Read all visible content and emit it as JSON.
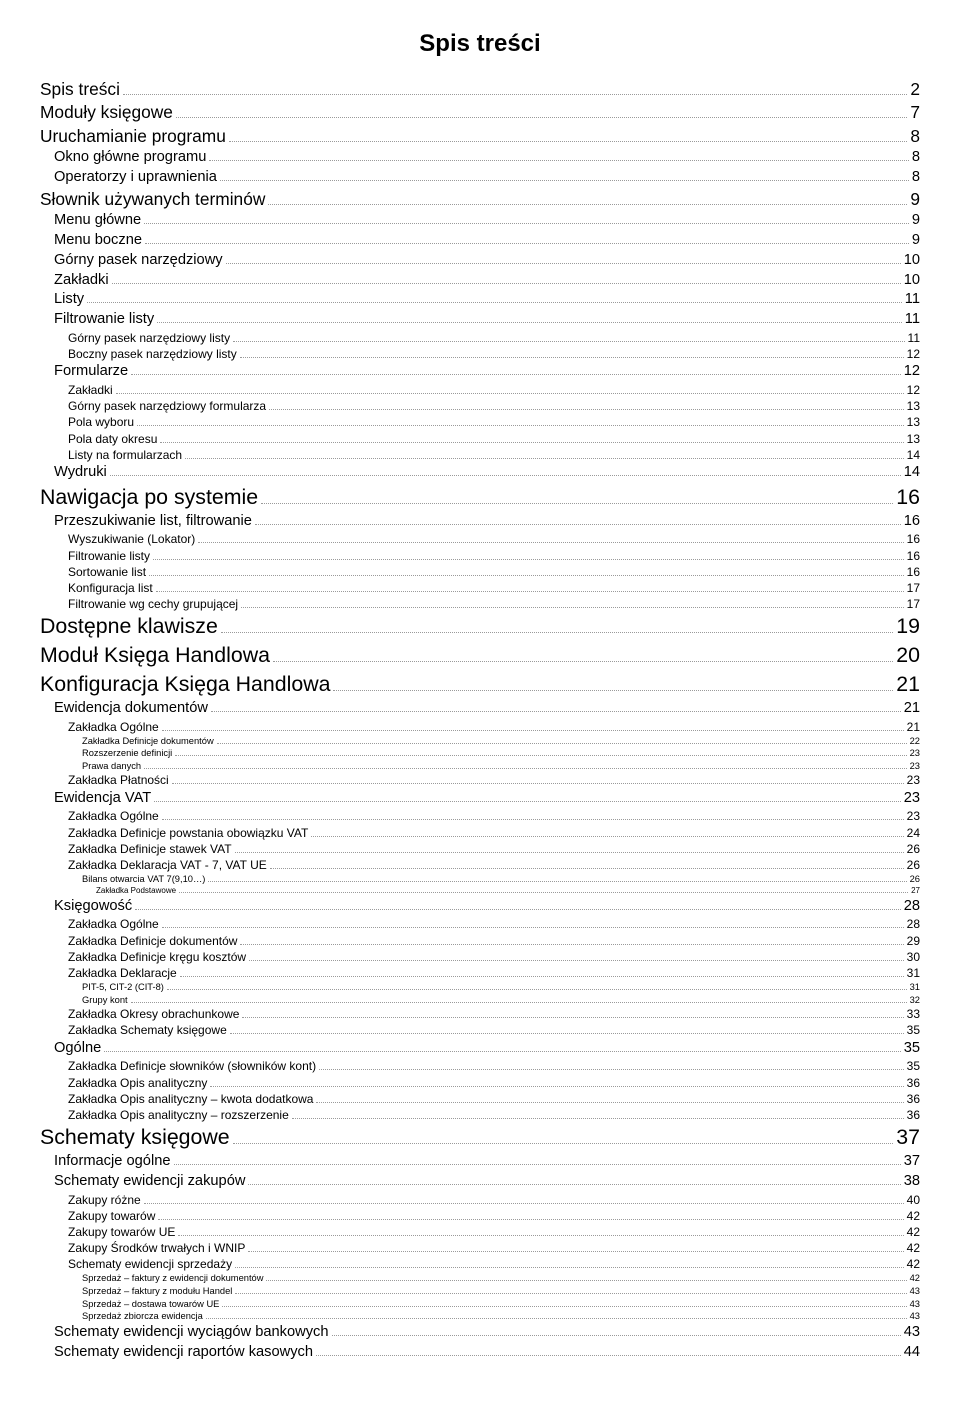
{
  "title": "Spis treści",
  "style": {
    "title_fontsize_pt": 18,
    "background_color": "#ffffff",
    "text_color": "#000000",
    "dot_color": "#9a9a9a",
    "size_pt": {
      "0": 16,
      "1": 13,
      "2": 11,
      "3": 9,
      "4": 7,
      "5": 6
    }
  },
  "entries": [
    {
      "label": "Spis treści",
      "page": "2",
      "indent": 0,
      "size": 1
    },
    {
      "label": "Moduły księgowe",
      "page": "7",
      "indent": 0,
      "size": 1
    },
    {
      "label": "Uruchamianie programu",
      "page": "8",
      "indent": 0,
      "size": 1
    },
    {
      "label": "Okno główne programu",
      "page": "8",
      "indent": 1,
      "size": 2
    },
    {
      "label": "Operatorzy i uprawnienia",
      "page": "8",
      "indent": 1,
      "size": 2
    },
    {
      "label": "Słownik używanych terminów",
      "page": "9",
      "indent": 0,
      "size": 1
    },
    {
      "label": "Menu główne",
      "page": "9",
      "indent": 1,
      "size": 2
    },
    {
      "label": "Menu boczne",
      "page": "9",
      "indent": 1,
      "size": 2
    },
    {
      "label": "Górny pasek narzędziowy",
      "page": "10",
      "indent": 1,
      "size": 2
    },
    {
      "label": "Zakładki",
      "page": "10",
      "indent": 1,
      "size": 2
    },
    {
      "label": "Listy",
      "page": "11",
      "indent": 1,
      "size": 2
    },
    {
      "label": "Filtrowanie listy",
      "page": "11",
      "indent": 1,
      "size": 2
    },
    {
      "label": "Górny pasek narzędziowy listy",
      "page": "11",
      "indent": 2,
      "size": 3
    },
    {
      "label": "Boczny pasek narzędziowy listy",
      "page": "12",
      "indent": 2,
      "size": 3
    },
    {
      "label": "Formularze",
      "page": "12",
      "indent": 1,
      "size": 2
    },
    {
      "label": "Zakładki",
      "page": "12",
      "indent": 2,
      "size": 3
    },
    {
      "label": "Górny pasek narzędziowy formularza",
      "page": "13",
      "indent": 2,
      "size": 3
    },
    {
      "label": "Pola wyboru",
      "page": "13",
      "indent": 2,
      "size": 3
    },
    {
      "label": "Pola daty okresu",
      "page": "13",
      "indent": 2,
      "size": 3
    },
    {
      "label": "Listy na formularzach",
      "page": "14",
      "indent": 2,
      "size": 3
    },
    {
      "label": "Wydruki",
      "page": "14",
      "indent": 1,
      "size": 2
    },
    {
      "label": "Nawigacja po systemie",
      "page": "16",
      "indent": 0,
      "size": 0
    },
    {
      "label": "Przeszukiwanie list, filtrowanie",
      "page": "16",
      "indent": 1,
      "size": 2
    },
    {
      "label": "Wyszukiwanie (Lokator)",
      "page": "16",
      "indent": 2,
      "size": 3
    },
    {
      "label": "Filtrowanie listy",
      "page": "16",
      "indent": 2,
      "size": 3
    },
    {
      "label": "Sortowanie list",
      "page": "16",
      "indent": 2,
      "size": 3
    },
    {
      "label": "Konfiguracja list",
      "page": "17",
      "indent": 2,
      "size": 3
    },
    {
      "label": "Filtrowanie wg cechy grupującej",
      "page": "17",
      "indent": 2,
      "size": 3
    },
    {
      "label": "Dostępne klawisze",
      "page": "19",
      "indent": 0,
      "size": 0
    },
    {
      "label": "Moduł Księga Handlowa",
      "page": "20",
      "indent": 0,
      "size": 0
    },
    {
      "label": "Konfiguracja Księga Handlowa",
      "page": "21",
      "indent": 0,
      "size": 0
    },
    {
      "label": "Ewidencja dokumentów",
      "page": "21",
      "indent": 1,
      "size": 2
    },
    {
      "label": "Zakładka Ogólne",
      "page": "21",
      "indent": 2,
      "size": 3
    },
    {
      "label": "Zakładka Definicje dokumentów",
      "page": "22",
      "indent": 3,
      "size": 4
    },
    {
      "label": "Rozszerzenie definicji",
      "page": "23",
      "indent": 3,
      "size": 4
    },
    {
      "label": "Prawa danych",
      "page": "23",
      "indent": 3,
      "size": 4
    },
    {
      "label": "Zakładka Płatności",
      "page": "23",
      "indent": 2,
      "size": 3
    },
    {
      "label": "Ewidencja VAT",
      "page": "23",
      "indent": 1,
      "size": 2
    },
    {
      "label": "Zakładka Ogólne",
      "page": "23",
      "indent": 2,
      "size": 3
    },
    {
      "label": "Zakładka Definicje powstania obowiązku VAT",
      "page": "24",
      "indent": 2,
      "size": 3
    },
    {
      "label": "Zakładka Definicje stawek VAT",
      "page": "26",
      "indent": 2,
      "size": 3
    },
    {
      "label": "Zakładka Deklaracja VAT - 7, VAT UE",
      "page": "26",
      "indent": 2,
      "size": 3
    },
    {
      "label": "Bilans otwarcia VAT 7(9,10…)",
      "page": "26",
      "indent": 3,
      "size": 4
    },
    {
      "label": "Zakładka Podstawowe",
      "page": "27",
      "indent": 4,
      "size": 5
    },
    {
      "label": "Księgowość",
      "page": "28",
      "indent": 1,
      "size": 2
    },
    {
      "label": "Zakładka Ogólne",
      "page": "28",
      "indent": 2,
      "size": 3
    },
    {
      "label": "Zakładka Definicje dokumentów",
      "page": "29",
      "indent": 2,
      "size": 3
    },
    {
      "label": "Zakładka Definicje kręgu kosztów",
      "page": "30",
      "indent": 2,
      "size": 3
    },
    {
      "label": "Zakładka Deklaracje",
      "page": "31",
      "indent": 2,
      "size": 3
    },
    {
      "label": "PIT-5, CIT-2 (CIT-8)",
      "page": "31",
      "indent": 3,
      "size": 4
    },
    {
      "label": "Grupy kont",
      "page": "32",
      "indent": 3,
      "size": 4
    },
    {
      "label": "Zakładka Okresy obrachunkowe",
      "page": "33",
      "indent": 2,
      "size": 3
    },
    {
      "label": "Zakładka Schematy księgowe",
      "page": "35",
      "indent": 2,
      "size": 3
    },
    {
      "label": "Ogólne",
      "page": "35",
      "indent": 1,
      "size": 2
    },
    {
      "label": "Zakładka Definicje słowników (słowników kont)",
      "page": "35",
      "indent": 2,
      "size": 3
    },
    {
      "label": "Zakładka Opis analityczny",
      "page": "36",
      "indent": 2,
      "size": 3
    },
    {
      "label": "Zakładka Opis analityczny – kwota dodatkowa",
      "page": "36",
      "indent": 2,
      "size": 3
    },
    {
      "label": "Zakładka Opis analityczny – rozszerzenie",
      "page": "36",
      "indent": 2,
      "size": 3
    },
    {
      "label": "Schematy księgowe",
      "page": "37",
      "indent": 0,
      "size": 0
    },
    {
      "label": "Informacje ogólne",
      "page": "37",
      "indent": 1,
      "size": 2
    },
    {
      "label": "Schematy ewidencji zakupów",
      "page": "38",
      "indent": 1,
      "size": 2
    },
    {
      "label": "Zakupy różne",
      "page": "40",
      "indent": 2,
      "size": 3
    },
    {
      "label": "Zakupy towarów",
      "page": "42",
      "indent": 2,
      "size": 3
    },
    {
      "label": "Zakupy towarów UE",
      "page": "42",
      "indent": 2,
      "size": 3
    },
    {
      "label": "Zakupy Środków trwałych i WNIP",
      "page": "42",
      "indent": 2,
      "size": 3
    },
    {
      "label": "Schematy ewidencji sprzedaży",
      "page": "42",
      "indent": 2,
      "size": 3
    },
    {
      "label": "Sprzedaż – faktury z ewidencji dokumentów",
      "page": "42",
      "indent": 3,
      "size": 4
    },
    {
      "label": "Sprzedaż – faktury z modułu Handel",
      "page": "43",
      "indent": 3,
      "size": 4
    },
    {
      "label": "Sprzedaż – dostawa towarów UE",
      "page": "43",
      "indent": 3,
      "size": 4
    },
    {
      "label": "Sprzedaż zbiorcza ewidencja",
      "page": "43",
      "indent": 3,
      "size": 4
    },
    {
      "label": "Schematy ewidencji wyciągów bankowych",
      "page": "43",
      "indent": 1,
      "size": 2
    },
    {
      "label": "Schematy ewidencji raportów kasowych",
      "page": "44",
      "indent": 1,
      "size": 2
    }
  ]
}
